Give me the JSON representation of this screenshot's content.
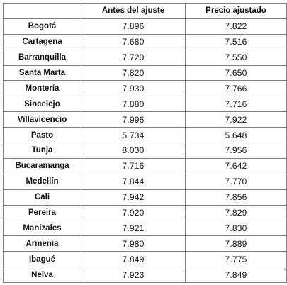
{
  "table": {
    "headers": [
      "",
      "Antes del ajuste",
      "Precio ajustado"
    ],
    "rows": [
      {
        "city": "Bogotá",
        "before": "7.896",
        "adjusted": "7.822"
      },
      {
        "city": "Cartagena",
        "before": "7.680",
        "adjusted": "7.516"
      },
      {
        "city": "Barranquilla",
        "before": "7.720",
        "adjusted": "7.550"
      },
      {
        "city": "Santa Marta",
        "before": "7.820",
        "adjusted": "7.650"
      },
      {
        "city": "Montería",
        "before": "7.930",
        "adjusted": "7.766"
      },
      {
        "city": "Sincelejo",
        "before": "7.880",
        "adjusted": "7.716"
      },
      {
        "city": "Villavicencio",
        "before": "7.996",
        "adjusted": "7.922"
      },
      {
        "city": "Pasto",
        "before": "5.734",
        "adjusted": "5.648"
      },
      {
        "city": "Tunja",
        "before": "8.030",
        "adjusted": "7.956"
      },
      {
        "city": "Bucaramanga",
        "before": "7.716",
        "adjusted": "7.642"
      },
      {
        "city": "Medellín",
        "before": "7.844",
        "adjusted": "7.770"
      },
      {
        "city": "Cali",
        "before": "7.942",
        "adjusted": "7.856"
      },
      {
        "city": "Pereira",
        "before": "7.920",
        "adjusted": "7.829"
      },
      {
        "city": "Manizales",
        "before": "7.921",
        "adjusted": "7.830"
      },
      {
        "city": "Armenia",
        "before": "7.980",
        "adjusted": "7.889"
      },
      {
        "city": "Ibagué",
        "before": "7.849",
        "adjusted": "7.775"
      },
      {
        "city": "Neiva",
        "before": "7.923",
        "adjusted": "7.849"
      }
    ]
  },
  "trailing_mark": "'"
}
